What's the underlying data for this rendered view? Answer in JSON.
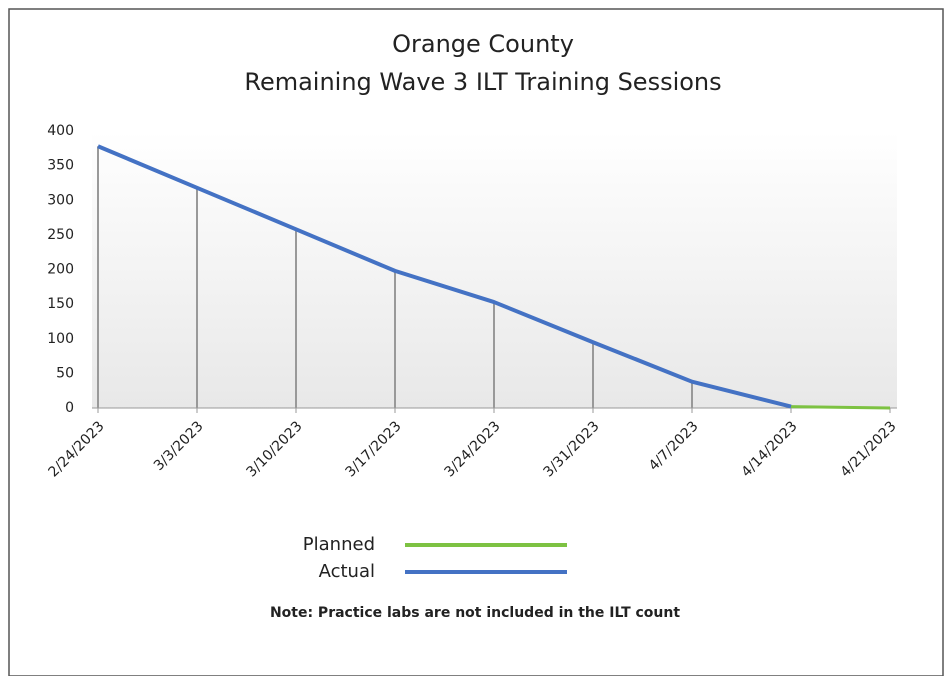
{
  "chart_data": {
    "type": "line",
    "title": [
      "Orange County",
      "Remaining Wave 3 ILT Training Sessions"
    ],
    "categories": [
      "2/24/2023",
      "3/3/2023",
      "3/10/2023",
      "3/17/2023",
      "3/24/2023",
      "3/31/2023",
      "4/7/2023",
      "4/14/2023",
      "4/21/2023"
    ],
    "series": [
      {
        "name": "Planned",
        "color": "#7dc242",
        "values": [
          null,
          null,
          null,
          null,
          null,
          null,
          null,
          2,
          0
        ]
      },
      {
        "name": "Actual",
        "color": "#4472c4",
        "values": [
          378,
          318,
          258,
          198,
          153,
          95,
          38,
          2,
          null
        ]
      }
    ],
    "ylim": [
      0,
      400
    ],
    "yticks": [
      0,
      50,
      100,
      150,
      200,
      250,
      300,
      350,
      400
    ],
    "grid": false,
    "drop_lines": true,
    "note": "Note: Practice labs are not included in the ILT count"
  }
}
